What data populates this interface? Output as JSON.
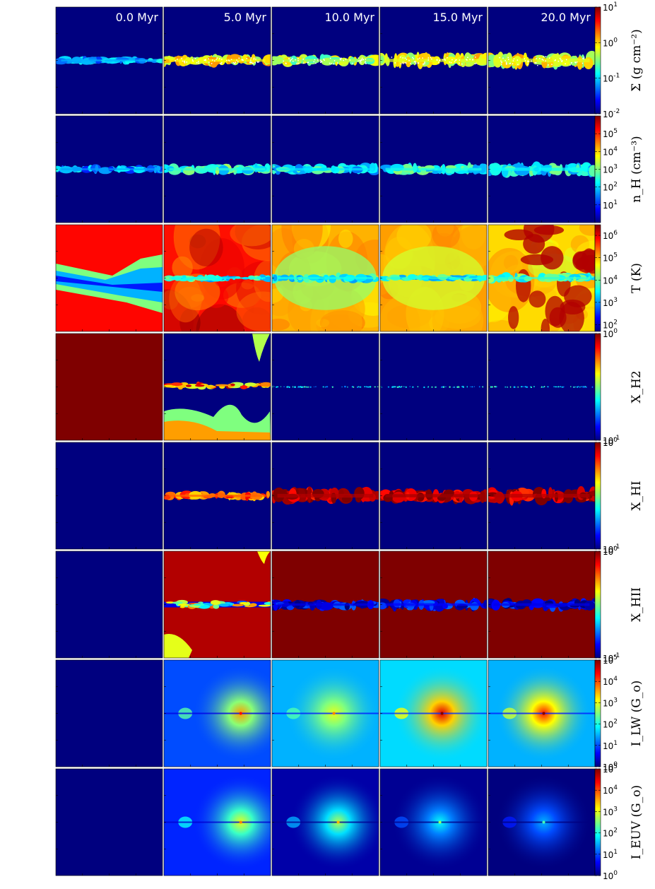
{
  "chart_data": {
    "type": "heatmap",
    "grid": {
      "rows": 8,
      "columns": 5
    },
    "columns": [
      "0.0 Myr",
      "5.0 Myr",
      "10.0 Myr",
      "15.0 Myr",
      "20.0 Myr"
    ],
    "colormap": "jet",
    "colormap_stops": [
      "#00007f",
      "#0000ff",
      "#007fff",
      "#00ffff",
      "#7fff7f",
      "#ffff00",
      "#ff7f00",
      "#ff0000",
      "#7f0000"
    ],
    "rows": [
      {
        "key": "sigma",
        "label": "Σ  (g cm⁻²)",
        "scale": "log",
        "range": [
          0.01,
          10
        ],
        "ticks": [
          {
            "value": 10,
            "label": "10",
            "exp": "1"
          },
          {
            "value": 1,
            "label": "10",
            "exp": "0"
          },
          {
            "value": 0.1,
            "label": "10",
            "exp": "-1"
          },
          {
            "value": 0.01,
            "label": "10",
            "exp": "-2"
          }
        ],
        "panels": [
          {
            "style": "disk",
            "base": 0.0,
            "disk": 0.3,
            "width": 0.035
          },
          {
            "style": "disk",
            "base": 0.0,
            "disk": 0.62,
            "width": 0.05,
            "speckle": "#ffffff"
          },
          {
            "style": "disk",
            "base": 0.0,
            "disk": 0.55,
            "width": 0.05,
            "speckle": "#ffffff"
          },
          {
            "style": "disk",
            "base": 0.0,
            "disk": 0.6,
            "width": 0.06,
            "speckle": "#ffffff"
          },
          {
            "style": "disk",
            "base": 0.0,
            "disk": 0.6,
            "width": 0.07,
            "speckle": "#ffffff"
          }
        ]
      },
      {
        "key": "nH",
        "label": "n_H  (cm⁻³)",
        "scale": "log",
        "range": [
          1,
          1000000
        ],
        "ticks": [
          {
            "value": 100000,
            "label": "10",
            "exp": "5"
          },
          {
            "value": 10000,
            "label": "10",
            "exp": "4"
          },
          {
            "value": 1000,
            "label": "10",
            "exp": "3"
          },
          {
            "value": 100,
            "label": "10",
            "exp": "2"
          },
          {
            "value": 10,
            "label": "10",
            "exp": "1"
          }
        ],
        "panels": [
          {
            "style": "disk",
            "base": 0.0,
            "disk": 0.28,
            "width": 0.035
          },
          {
            "style": "disk",
            "base": 0.0,
            "disk": 0.42,
            "width": 0.045
          },
          {
            "style": "disk",
            "base": 0.0,
            "disk": 0.36,
            "width": 0.045
          },
          {
            "style": "disk",
            "base": 0.0,
            "disk": 0.4,
            "width": 0.05
          },
          {
            "style": "disk",
            "base": 0.0,
            "disk": 0.38,
            "width": 0.06
          }
        ]
      },
      {
        "key": "T",
        "label": "T  (K)",
        "scale": "log",
        "range": [
          50,
          3000000
        ],
        "ticks": [
          {
            "value": 1000000,
            "label": "10",
            "exp": "6"
          },
          {
            "value": 100000,
            "label": "10",
            "exp": "5"
          },
          {
            "value": 10000,
            "label": "10",
            "exp": "4"
          },
          {
            "value": 1000,
            "label": "10",
            "exp": "3"
          },
          {
            "value": 100,
            "label": "10",
            "exp": "2"
          }
        ],
        "panels": [
          {
            "style": "tempinit"
          },
          {
            "style": "field",
            "base": 0.86,
            "disk": 0.38,
            "width": 0.03,
            "swirl": 0.14
          },
          {
            "style": "field",
            "base": 0.7,
            "disk": 0.4,
            "width": 0.04,
            "swirl": 0.08,
            "core": 0.52
          },
          {
            "style": "field",
            "base": 0.72,
            "disk": 0.4,
            "width": 0.03,
            "swirl": 0.06,
            "core": 0.58
          },
          {
            "style": "field",
            "base": 0.66,
            "disk": 0.42,
            "width": 0.04,
            "swirl": 0.1,
            "blobs": 0.95
          }
        ]
      },
      {
        "key": "xH2",
        "label": "X_H2",
        "scale": "log",
        "range": [
          0.1,
          1
        ],
        "ticks": [
          {
            "value": 1,
            "label": "10",
            "exp": "0"
          },
          {
            "value": 0.1,
            "label": "10",
            "exp": "-1"
          }
        ],
        "panels": [
          {
            "style": "uniform",
            "base": 1.0
          },
          {
            "style": "h2mid"
          },
          {
            "style": "disk",
            "base": 0.0,
            "disk": 0.35,
            "width": 0.006,
            "sparse": true
          },
          {
            "style": "disk",
            "base": 0.0,
            "disk": 0.35,
            "width": 0.008,
            "sparse": true
          },
          {
            "style": "disk",
            "base": 0.0,
            "disk": 0.35,
            "width": 0.008,
            "sparse": true
          }
        ]
      },
      {
        "key": "xHI",
        "label": "X_HI",
        "scale": "log",
        "range": [
          0.1,
          1
        ],
        "ticks": [
          {
            "value": 1,
            "label": "10",
            "exp": "0"
          },
          {
            "value": 0.1,
            "label": "10",
            "exp": "-1"
          }
        ],
        "panels": [
          {
            "style": "uniform",
            "base": 0.0
          },
          {
            "style": "disk",
            "base": 0.0,
            "disk": 0.78,
            "width": 0.04
          },
          {
            "style": "disk",
            "base": 0.0,
            "disk": 0.95,
            "width": 0.07
          },
          {
            "style": "disk",
            "base": 0.0,
            "disk": 0.97,
            "width": 0.06
          },
          {
            "style": "disk",
            "base": 0.0,
            "disk": 0.95,
            "width": 0.07
          }
        ]
      },
      {
        "key": "xHII",
        "label": "X_HII",
        "scale": "log",
        "range": [
          0.1,
          1
        ],
        "ticks": [
          {
            "value": 1,
            "label": "10",
            "exp": "0"
          },
          {
            "value": 0.1,
            "label": "10",
            "exp": "-1"
          }
        ],
        "panels": [
          {
            "style": "uniform",
            "base": 0.0
          },
          {
            "style": "hiimid"
          },
          {
            "style": "field",
            "base": 1.0,
            "disk": 0.1,
            "width": 0.045
          },
          {
            "style": "field",
            "base": 1.0,
            "disk": 0.12,
            "width": 0.05
          },
          {
            "style": "field",
            "base": 1.0,
            "disk": 0.1,
            "width": 0.05
          }
        ]
      },
      {
        "key": "ILW",
        "label": "I_LW  (G_o)",
        "scale": "log",
        "range": [
          1,
          100000
        ],
        "ticks": [
          {
            "value": 100000,
            "label": "10",
            "exp": "5"
          },
          {
            "value": 10000,
            "label": "10",
            "exp": "4"
          },
          {
            "value": 1000,
            "label": "10",
            "exp": "3"
          },
          {
            "value": 100,
            "label": "10",
            "exp": "2"
          },
          {
            "value": 10,
            "label": "10",
            "exp": "1"
          },
          {
            "value": 1,
            "label": "10",
            "exp": "0"
          }
        ],
        "panels": [
          {
            "style": "uniform",
            "base": 0.0
          },
          {
            "style": "glow",
            "base": 0.2,
            "peak": 0.72,
            "cx": 0.72
          },
          {
            "style": "glow",
            "base": 0.3,
            "peak": 0.6,
            "cx": 0.58
          },
          {
            "style": "glow",
            "base": 0.34,
            "peak": 0.9,
            "cx": 0.58
          },
          {
            "style": "glow",
            "base": 0.3,
            "peak": 0.85,
            "cx": 0.52
          }
        ]
      },
      {
        "key": "IEUV",
        "label": "I_EUV  (G_o)",
        "scale": "log",
        "range": [
          1,
          100000
        ],
        "ticks": [
          {
            "value": 100000,
            "label": "10",
            "exp": "5"
          },
          {
            "value": 10000,
            "label": "10",
            "exp": "4"
          },
          {
            "value": 1000,
            "label": "10",
            "exp": "3"
          },
          {
            "value": 100,
            "label": "10",
            "exp": "2"
          },
          {
            "value": 10,
            "label": "10",
            "exp": "1"
          },
          {
            "value": 1,
            "label": "10",
            "exp": "0"
          }
        ],
        "panels": [
          {
            "style": "uniform",
            "base": 0.0
          },
          {
            "style": "glow",
            "base": 0.16,
            "peak": 0.6,
            "cx": 0.72
          },
          {
            "style": "glow",
            "base": 0.04,
            "peak": 0.55,
            "cx": 0.62
          },
          {
            "style": "glow",
            "base": 0.02,
            "peak": 0.38,
            "cx": 0.56
          },
          {
            "style": "glow",
            "base": 0.0,
            "peak": 0.3,
            "cx": 0.52
          }
        ]
      }
    ]
  }
}
